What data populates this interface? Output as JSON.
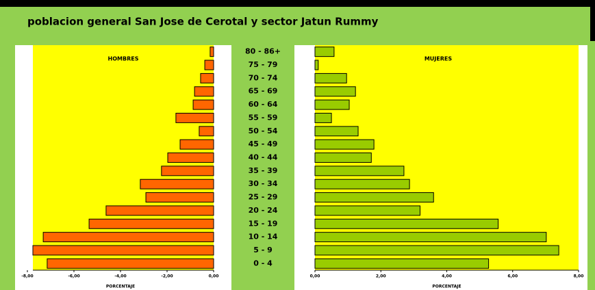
{
  "chart_data": {
    "type": "pyramid",
    "title": "poblacion general San Jose de Cerotal y sector Jatun Rummy",
    "categories": [
      "0 - 4",
      "5 - 9",
      "10 - 14",
      "15 - 19",
      "20 - 24",
      "25 - 29",
      "30 - 34",
      "35 - 39",
      "40 - 44",
      "45 - 49",
      "50 - 54",
      "55 - 59",
      "60 - 64",
      "65 - 69",
      "70 - 74",
      "75 - 79",
      "80 - 86+"
    ],
    "series": [
      {
        "name": "HOMBRES",
        "color": "#ff6600",
        "xlabel": "PORCENTAJE",
        "values": [
          -7.15,
          -7.8,
          -7.32,
          -5.35,
          -4.62,
          -2.91,
          -3.15,
          -2.24,
          -1.97,
          -1.44,
          -0.62,
          -1.62,
          -0.88,
          -0.82,
          -0.56,
          -0.38,
          -0.15
        ],
        "xlim": [
          -8,
          0
        ],
        "xticks": [
          {
            "value": -8,
            "label": "-8,00"
          },
          {
            "value": -6,
            "label": "-6,00"
          },
          {
            "value": -4,
            "label": "-4,00"
          },
          {
            "value": -2,
            "label": "-2,00"
          },
          {
            "value": 0,
            "label": "0,00"
          }
        ]
      },
      {
        "name": "MUJERES",
        "color": "#99cc00",
        "xlabel": "PORCENTAJE",
        "values": [
          5.27,
          7.4,
          7.02,
          5.56,
          3.19,
          3.6,
          2.87,
          2.7,
          1.71,
          1.79,
          1.31,
          0.5,
          1.04,
          1.23,
          0.96,
          0.1,
          0.58
        ],
        "xlim": [
          0,
          8
        ],
        "xticks": [
          {
            "value": 0,
            "label": "0,00"
          },
          {
            "value": 2,
            "label": "2,00"
          },
          {
            "value": 4,
            "label": "4,00"
          },
          {
            "value": 6,
            "label": "6,00"
          },
          {
            "value": 8,
            "label": "8,00"
          }
        ]
      }
    ]
  }
}
